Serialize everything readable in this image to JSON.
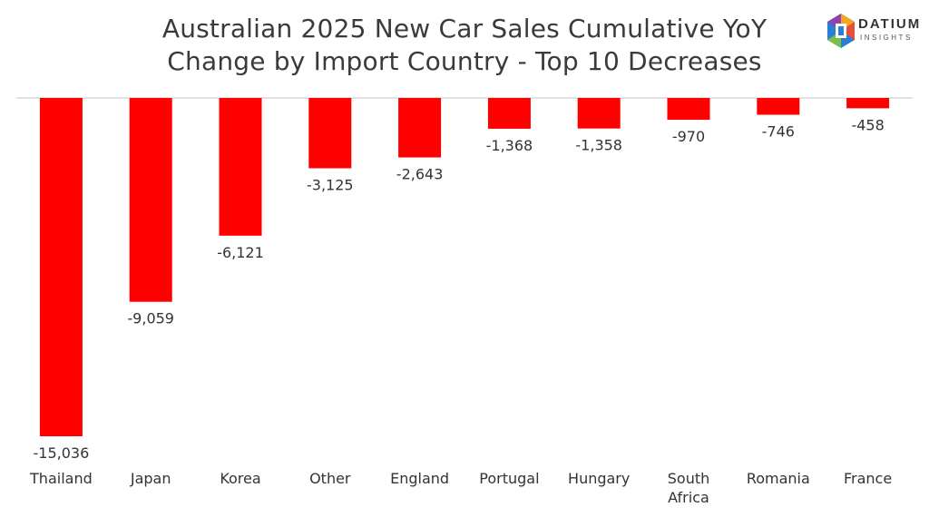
{
  "chart_data": {
    "type": "bar",
    "title_lines": [
      "Australian 2025 New Car Sales Cumulative YoY",
      "Change by Import Country - Top 10 Decreases"
    ],
    "categories": [
      [
        "Thailand"
      ],
      [
        "Japan"
      ],
      [
        "Korea"
      ],
      [
        "Other"
      ],
      [
        "England"
      ],
      [
        "Portugal"
      ],
      [
        "Hungary"
      ],
      [
        "South",
        "Africa"
      ],
      [
        "Romania"
      ],
      [
        "France"
      ]
    ],
    "values": [
      -15036,
      -9059,
      -6121,
      -3125,
      -2643,
      -1368,
      -1358,
      -970,
      -746,
      -458
    ],
    "data_labels": [
      "-15,036",
      "-9,059",
      "-6,121",
      "-3,125",
      "-2,643",
      "-1,368",
      "-1,358",
      "-970",
      "-746",
      "-458"
    ],
    "bar_color": "#ff0000",
    "axis_line_color": "#d9d9d9",
    "ylim": [
      -15036,
      0
    ],
    "grid": false,
    "legend": "none"
  },
  "logo": {
    "name": "DATIUM",
    "subtitle": "INSIGHTS",
    "icon": "datium-hex-logo-icon"
  }
}
